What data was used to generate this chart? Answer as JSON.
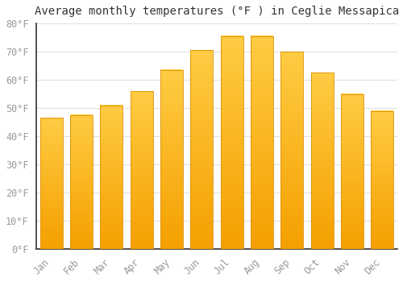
{
  "title": "Average monthly temperatures (°F ) in Ceglie Messapica",
  "months": [
    "Jan",
    "Feb",
    "Mar",
    "Apr",
    "May",
    "Jun",
    "Jul",
    "Aug",
    "Sep",
    "Oct",
    "Nov",
    "Dec"
  ],
  "values": [
    46.5,
    47.5,
    51.0,
    56.0,
    63.5,
    70.5,
    75.5,
    75.5,
    70.0,
    62.5,
    55.0,
    49.0
  ],
  "bar_color_top": "#FFCC44",
  "bar_color_bottom": "#F5A000",
  "bar_edge_color": "#E09000",
  "ylim": [
    0,
    80
  ],
  "yticks": [
    0,
    10,
    20,
    30,
    40,
    50,
    60,
    70,
    80
  ],
  "ytick_labels": [
    "0°F",
    "10°F",
    "20°F",
    "30°F",
    "40°F",
    "50°F",
    "60°F",
    "70°F",
    "80°F"
  ],
  "background_color": "#ffffff",
  "grid_color": "#e0e0e0",
  "title_fontsize": 10,
  "tick_fontsize": 8.5,
  "tick_color": "#999999",
  "bar_width": 0.75,
  "spine_color": "#333333"
}
